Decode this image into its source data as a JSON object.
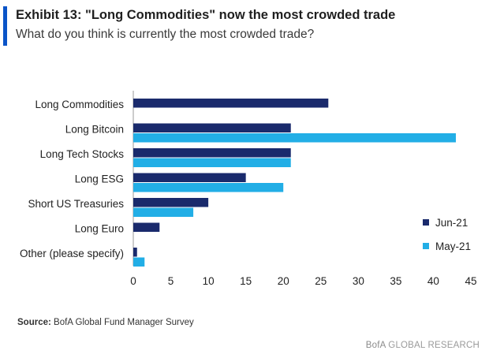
{
  "header": {
    "title": "Exhibit 13: \"Long Commodities\" now the most crowded trade",
    "subtitle": "What do you think is currently the most crowded trade?",
    "accent_color": "#0a54c8"
  },
  "chart_data": {
    "type": "bar",
    "orientation": "horizontal",
    "categories": [
      "Long Commodities",
      "Long Bitcoin",
      "Long Tech Stocks",
      "Long ESG",
      "Short US Treasuries",
      "Long Euro",
      "Other (please specify)"
    ],
    "series": [
      {
        "name": "Jun-21",
        "color": "#1a2a6c",
        "values": [
          26,
          21,
          21,
          15,
          10,
          3.5,
          0.5
        ]
      },
      {
        "name": "May-21",
        "color": "#22aee6",
        "values": [
          null,
          43,
          21,
          20,
          8,
          null,
          1.5
        ]
      }
    ],
    "xlim": [
      0,
      45
    ],
    "xticks": [
      0,
      5,
      10,
      15,
      20,
      25,
      30,
      35,
      40,
      45
    ],
    "grid": false,
    "legend": "right"
  },
  "footer": {
    "source_label": "Source:",
    "source_text": "BofA Global Fund Manager Survey",
    "brand_prefix": "BofA",
    "brand_suffix": "GLOBAL RESEARCH"
  }
}
